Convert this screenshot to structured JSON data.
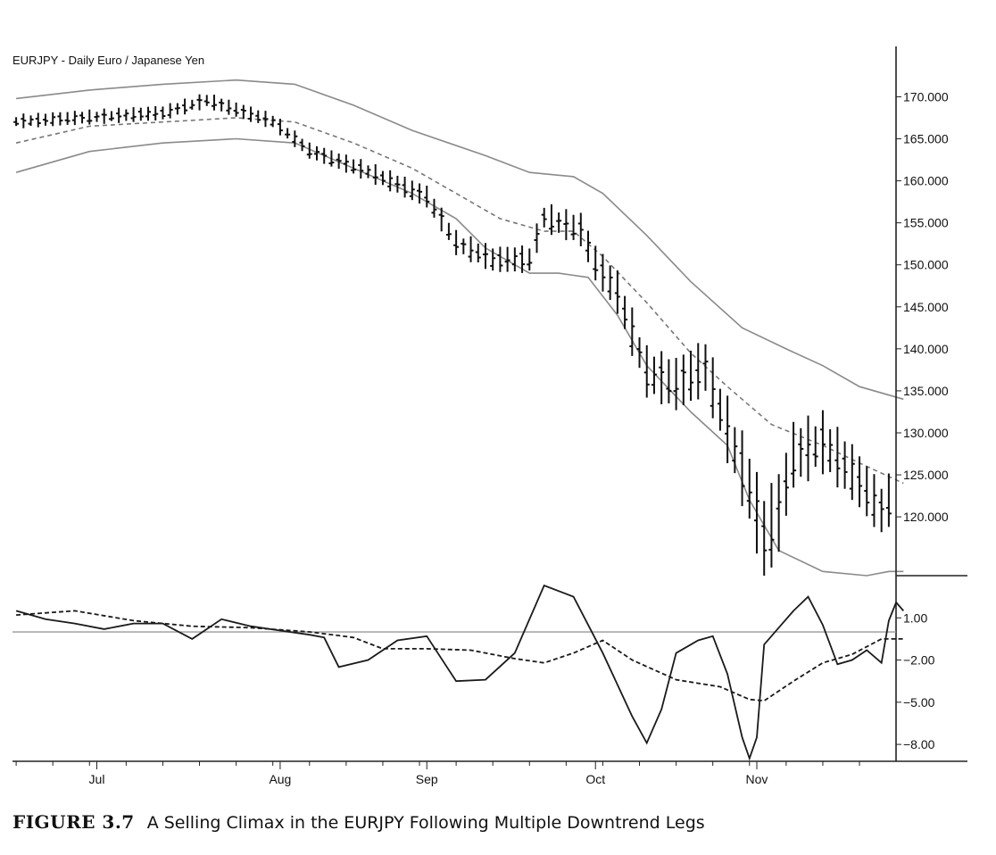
{
  "chart_data": [
    {
      "type": "line",
      "title": "EURJPY - Daily  Euro / Japanese Yen",
      "subtype": "ohlc-bars-with-bands",
      "ylim": [
        113,
        176
      ],
      "y_ticks": [
        "170.000",
        "165.000",
        "160.000",
        "155.000",
        "150.000",
        "145.000",
        "140.000",
        "135.000",
        "130.000",
        "125.000",
        "120.000"
      ],
      "y_tick_values": [
        170,
        165,
        160,
        155,
        150,
        145,
        140,
        135,
        130,
        125,
        120
      ],
      "x_labels": [
        "Jul",
        "Aug",
        "Sep",
        "Oct",
        "Nov"
      ],
      "x_label_index": [
        11,
        36,
        56,
        79,
        101
      ],
      "n_bars": 120,
      "grid": false,
      "legend": "none",
      "bars_anchors": [
        [
          0,
          167.0
        ],
        [
          10,
          167.5
        ],
        [
          20,
          168.0
        ],
        [
          26,
          169.5
        ],
        [
          35,
          167.0
        ],
        [
          40,
          163.5
        ],
        [
          48,
          161.0
        ],
        [
          56,
          158.0
        ],
        [
          60,
          152.5
        ],
        [
          65,
          150.5
        ],
        [
          70,
          150.5
        ],
        [
          72,
          155.5
        ],
        [
          77,
          154.0
        ],
        [
          79,
          150.0
        ],
        [
          82,
          146.5
        ],
        [
          86,
          137.0
        ],
        [
          90,
          135.5
        ],
        [
          94,
          137.5
        ],
        [
          97,
          130.0
        ],
        [
          100,
          123.0
        ],
        [
          102,
          117.0
        ],
        [
          104,
          120.0
        ],
        [
          106,
          127.0
        ],
        [
          110,
          128.5
        ],
        [
          114,
          125.0
        ],
        [
          118,
          120.5
        ],
        [
          121,
          124.0
        ]
      ],
      "range_anchors": [
        [
          0,
          1.4
        ],
        [
          40,
          1.6
        ],
        [
          55,
          2.2
        ],
        [
          75,
          3.0
        ],
        [
          86,
          5.0
        ],
        [
          96,
          6.0
        ],
        [
          103,
          9.0
        ],
        [
          106,
          6.5
        ],
        [
          121,
          5.0
        ]
      ],
      "series": [
        {
          "role": "upper band",
          "points": [
            [
              0,
              169.8
            ],
            [
              10,
              170.8
            ],
            [
              20,
              171.5
            ],
            [
              30,
              172.0
            ],
            [
              38,
              171.5
            ],
            [
              46,
              169.0
            ],
            [
              54,
              166.0
            ],
            [
              64,
              163.0
            ],
            [
              70,
              161.0
            ],
            [
              76,
              160.5
            ],
            [
              80,
              158.5
            ],
            [
              86,
              153.5
            ],
            [
              92,
              148.0
            ],
            [
              99,
              142.5
            ],
            [
              105,
              140.0
            ],
            [
              110,
              138.0
            ],
            [
              115,
              135.5
            ],
            [
              121,
              134.0
            ]
          ]
        },
        {
          "role": "middle band",
          "points": [
            [
              0,
              164.5
            ],
            [
              10,
              166.5
            ],
            [
              20,
              167.0
            ],
            [
              30,
              167.5
            ],
            [
              38,
              167.0
            ],
            [
              46,
              164.5
            ],
            [
              54,
              161.5
            ],
            [
              60,
              158.5
            ],
            [
              66,
              155.5
            ],
            [
              72,
              154.0
            ],
            [
              76,
              154.0
            ],
            [
              80,
              151.0
            ],
            [
              86,
              145.5
            ],
            [
              92,
              139.5
            ],
            [
              97,
              135.5
            ],
            [
              103,
              131.0
            ],
            [
              110,
              128.5
            ],
            [
              116,
              126.0
            ],
            [
              121,
              124.0
            ]
          ]
        },
        {
          "role": "lower band",
          "points": [
            [
              0,
              161.0
            ],
            [
              10,
              163.5
            ],
            [
              20,
              164.5
            ],
            [
              30,
              165.0
            ],
            [
              38,
              164.5
            ],
            [
              46,
              161.5
            ],
            [
              54,
              158.5
            ],
            [
              60,
              155.5
            ],
            [
              64,
              152.0
            ],
            [
              70,
              149.0
            ],
            [
              74,
              149.0
            ],
            [
              78,
              148.5
            ],
            [
              82,
              144.0
            ],
            [
              86,
              138.0
            ],
            [
              92,
              132.5
            ],
            [
              97,
              128.5
            ],
            [
              100,
              122.0
            ],
            [
              104,
              116.0
            ],
            [
              110,
              113.5
            ],
            [
              116,
              113.0
            ],
            [
              119,
              113.5
            ],
            [
              121,
              113.5
            ]
          ]
        }
      ]
    },
    {
      "type": "line",
      "ylim": [
        -9.2,
        4.0
      ],
      "y_ticks": [
        "1.00",
        "−2.00",
        "−5.00",
        "−8.00"
      ],
      "y_tick_values": [
        1,
        -2,
        -5,
        -8
      ],
      "reference_line": 0,
      "grid": false,
      "legend": "none",
      "series": [
        {
          "style": "solid",
          "points": [
            [
              0,
              1.5
            ],
            [
              4,
              0.9
            ],
            [
              8,
              0.6
            ],
            [
              12,
              0.2
            ],
            [
              16,
              0.6
            ],
            [
              20,
              0.6
            ],
            [
              24,
              -0.5
            ],
            [
              28,
              0.9
            ],
            [
              32,
              0.4
            ],
            [
              36,
              0.1
            ],
            [
              40,
              -0.2
            ],
            [
              42,
              -0.4
            ],
            [
              44,
              -2.5
            ],
            [
              48,
              -2.0
            ],
            [
              52,
              -0.6
            ],
            [
              56,
              -0.3
            ],
            [
              60,
              -3.5
            ],
            [
              64,
              -3.4
            ],
            [
              68,
              -1.5
            ],
            [
              72,
              3.3
            ],
            [
              76,
              2.5
            ],
            [
              80,
              -1.5
            ],
            [
              84,
              -6.0
            ],
            [
              86,
              -7.9
            ],
            [
              88,
              -5.5
            ],
            [
              90,
              -1.5
            ],
            [
              93,
              -0.6
            ],
            [
              95,
              -0.3
            ],
            [
              97,
              -3.0
            ],
            [
              99,
              -7.5
            ],
            [
              100,
              -9.0
            ],
            [
              101,
              -7.5
            ],
            [
              102,
              -0.9
            ],
            [
              104,
              0.3
            ],
            [
              106,
              1.5
            ],
            [
              108,
              2.5
            ],
            [
              110,
              0.5
            ],
            [
              112,
              -2.3
            ],
            [
              114,
              -2.0
            ],
            [
              116,
              -1.3
            ],
            [
              118,
              -2.2
            ],
            [
              119,
              0.8
            ],
            [
              120,
              2.1
            ],
            [
              121,
              1.5
            ]
          ]
        },
        {
          "style": "dashed",
          "points": [
            [
              0,
              1.2
            ],
            [
              8,
              1.5
            ],
            [
              16,
              0.8
            ],
            [
              24,
              0.4
            ],
            [
              32,
              0.3
            ],
            [
              40,
              0.0
            ],
            [
              46,
              -0.4
            ],
            [
              50,
              -1.2
            ],
            [
              56,
              -1.2
            ],
            [
              62,
              -1.3
            ],
            [
              68,
              -1.9
            ],
            [
              72,
              -2.2
            ],
            [
              76,
              -1.5
            ],
            [
              80,
              -0.6
            ],
            [
              84,
              -2.0
            ],
            [
              90,
              -3.4
            ],
            [
              96,
              -3.9
            ],
            [
              100,
              -4.8
            ],
            [
              102,
              -4.9
            ],
            [
              106,
              -3.5
            ],
            [
              110,
              -2.2
            ],
            [
              114,
              -1.6
            ],
            [
              118,
              -0.5
            ],
            [
              121,
              -0.5
            ]
          ]
        }
      ]
    }
  ],
  "caption": {
    "label": "FIGURE 3.7",
    "text": "A Selling Climax in the EURJPY Following Multiple Downtrend Legs"
  }
}
